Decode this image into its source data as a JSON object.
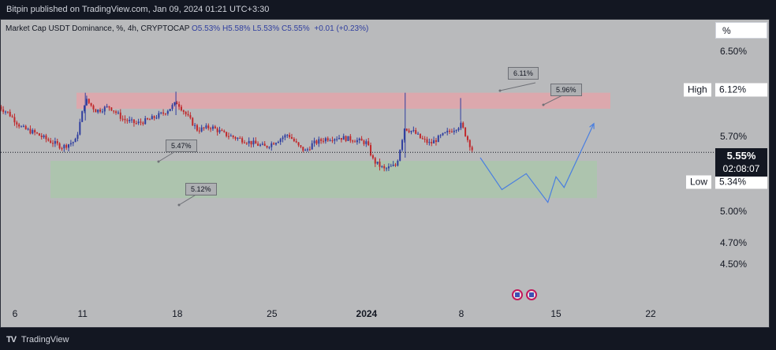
{
  "header": {
    "publisher_text": "Bitpin published on TradingView.com, Jan 09, 2024 01:21 UTC+3:30"
  },
  "legend": {
    "symbol": "Market Cap USDT Dominance, %, 4h, CRYPTOCAP",
    "open": "O5.53%",
    "high": "H5.58%",
    "low": "L5.53%",
    "close": "C5.55%",
    "change": "+0.01 (+0.23%)"
  },
  "scale_button": "%",
  "footer": {
    "brand": "TradingView",
    "logo": "TV"
  },
  "price_tags": {
    "high_label": "High",
    "high_value": "6.12%",
    "low_label": "Low",
    "low_value": "5.34%",
    "last_price": "5.55%",
    "countdown": "02:08:07"
  },
  "annotations": {
    "note_611": "6.11%",
    "note_596": "5.96%",
    "note_547": "5.47%",
    "note_512": "5.12%"
  },
  "colors": {
    "up": "#2f3e9f",
    "down": "#c0282b",
    "resistance_zone": "#e8a2a8",
    "support_zone": "#a9c7a9",
    "projection": "#4a7fe0"
  },
  "chart_data": {
    "type": "candlestick",
    "title": "Market Cap USDT Dominance, %, 4h, CRYPTOCAP",
    "y_axis": {
      "range": [
        4.38,
        6.69
      ],
      "ticks": [
        "6.50%",
        "5.70%",
        "5.00%",
        "4.70%",
        "4.50%"
      ],
      "tick_values": [
        6.5,
        5.7,
        5.0,
        4.7,
        4.5
      ]
    },
    "x_axis": {
      "ticks": [
        "6",
        "11",
        "18",
        "25",
        "2024",
        "8",
        "15",
        "22"
      ],
      "tick_days": [
        -25,
        -20,
        -13,
        -6,
        1,
        8,
        15,
        22
      ]
    },
    "last_price": 5.55,
    "zones": [
      {
        "name": "resistance",
        "from": 5.96,
        "to": 6.11
      },
      {
        "name": "support",
        "from": 5.12,
        "to": 5.47
      }
    ],
    "close_path_anchors": [
      [
        -26.2,
        5.98
      ],
      [
        -25.5,
        5.92
      ],
      [
        -24.5,
        5.78
      ],
      [
        -23.5,
        5.73
      ],
      [
        -22.5,
        5.66
      ],
      [
        -21.5,
        5.6
      ],
      [
        -20.5,
        5.66
      ],
      [
        -19.8,
        6.05
      ],
      [
        -19,
        5.94
      ],
      [
        -18,
        5.98
      ],
      [
        -17,
        5.86
      ],
      [
        -16,
        5.82
      ],
      [
        -15,
        5.86
      ],
      [
        -14,
        5.92
      ],
      [
        -13,
        6.02
      ],
      [
        -12.2,
        5.88
      ],
      [
        -11.5,
        5.76
      ],
      [
        -10.5,
        5.79
      ],
      [
        -9.5,
        5.72
      ],
      [
        -8.5,
        5.68
      ],
      [
        -7.5,
        5.64
      ],
      [
        -6.5,
        5.6
      ],
      [
        -5.5,
        5.67
      ],
      [
        -4.8,
        5.72
      ],
      [
        -4,
        5.6
      ],
      [
        -3.5,
        5.56
      ],
      [
        -3,
        5.63
      ],
      [
        -2,
        5.68
      ],
      [
        -1,
        5.69
      ],
      [
        0,
        5.67
      ],
      [
        1,
        5.64
      ],
      [
        1.5,
        5.47
      ],
      [
        2.3,
        5.39
      ],
      [
        3.2,
        5.43
      ],
      [
        3.8,
        5.78
      ],
      [
        4.5,
        5.74
      ],
      [
        5,
        5.68
      ],
      [
        5.7,
        5.63
      ],
      [
        6.5,
        5.7
      ],
      [
        7.3,
        5.76
      ],
      [
        8,
        5.81
      ],
      [
        8.5,
        5.66
      ],
      [
        8.9,
        5.55
      ]
    ],
    "projection": [
      [
        9.4,
        5.5
      ],
      [
        11,
        5.2
      ],
      [
        12.8,
        5.35
      ],
      [
        14.4,
        5.08
      ],
      [
        15,
        5.32
      ],
      [
        15.6,
        5.22
      ],
      [
        17.8,
        5.82
      ]
    ]
  }
}
